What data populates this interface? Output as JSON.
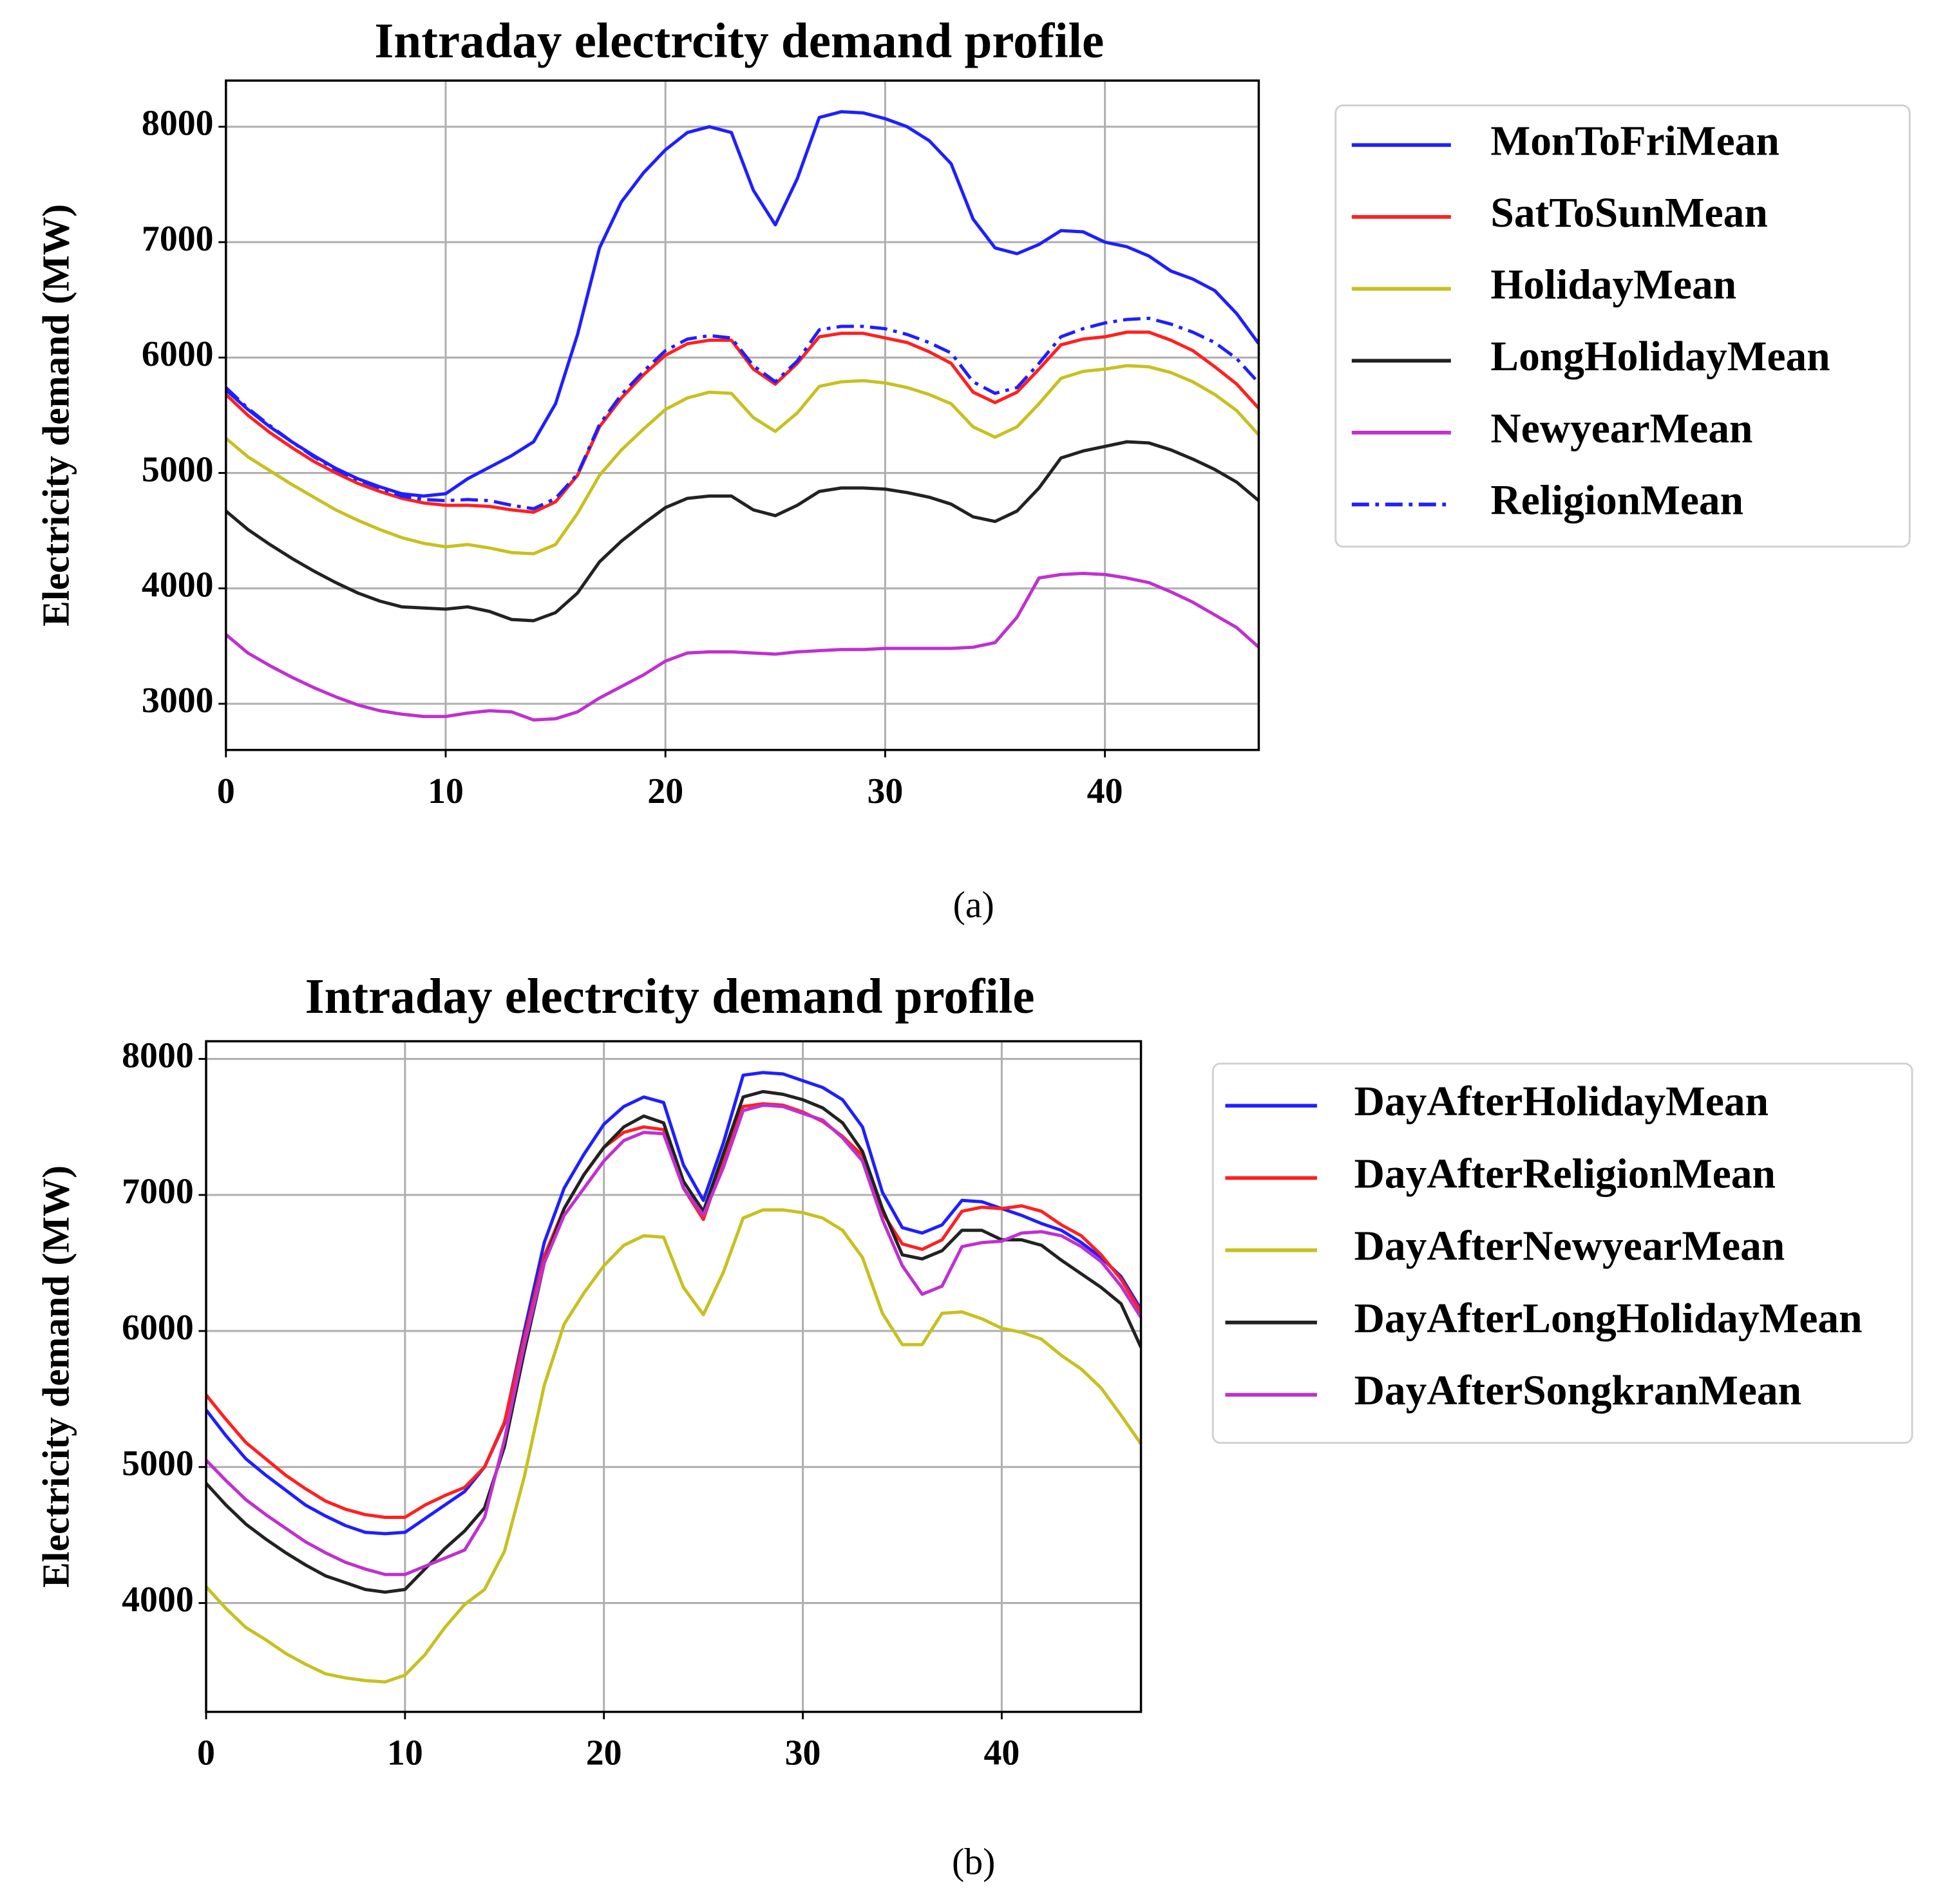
{
  "chart_data": [
    {
      "type": "line",
      "title": "Intraday electrcity demand profile",
      "ylabel": "Electricity demand (MW)",
      "caption": "(a)",
      "x": [
        0,
        1,
        2,
        3,
        4,
        5,
        6,
        7,
        8,
        9,
        10,
        11,
        12,
        13,
        14,
        15,
        16,
        17,
        18,
        19,
        20,
        21,
        22,
        23,
        24,
        25,
        26,
        27,
        28,
        29,
        30,
        31,
        32,
        33,
        34,
        35,
        36,
        37,
        38,
        39,
        40,
        41,
        42,
        43,
        44,
        45,
        46,
        47
      ],
      "xlim": [
        0,
        47
      ],
      "ylim": [
        2600,
        8400
      ],
      "xticks": [
        0,
        10,
        20,
        30,
        40
      ],
      "yticks": [
        3000,
        4000,
        5000,
        6000,
        7000,
        8000
      ],
      "grid": true,
      "legend": "outside right",
      "series": [
        {
          "name": "MonToFriMean",
          "color": "#1f1fff",
          "linestyle": "solid",
          "values": [
            5720,
            5550,
            5400,
            5270,
            5150,
            5040,
            4950,
            4880,
            4820,
            4800,
            4820,
            4950,
            5050,
            5150,
            5270,
            5600,
            6200,
            6950,
            7350,
            7600,
            7800,
            7950,
            8000,
            7950,
            7450,
            7150,
            7550,
            8080,
            8130,
            8120,
            8070,
            8000,
            7880,
            7680,
            7200,
            6950,
            6900,
            6980,
            7100,
            7090,
            7000,
            6960,
            6880,
            6750,
            6680,
            6580,
            6380,
            6120
          ]
        },
        {
          "name": "SatToSunMean",
          "color": "#ff2020",
          "linestyle": "solid",
          "values": [
            5680,
            5500,
            5350,
            5220,
            5100,
            5000,
            4910,
            4840,
            4780,
            4740,
            4720,
            4720,
            4710,
            4680,
            4660,
            4750,
            4980,
            5400,
            5650,
            5850,
            6020,
            6120,
            6150,
            6150,
            5900,
            5770,
            5950,
            6180,
            6210,
            6210,
            6170,
            6130,
            6050,
            5950,
            5700,
            5610,
            5700,
            5900,
            6110,
            6160,
            6180,
            6220,
            6220,
            6150,
            6060,
            5920,
            5770,
            5560
          ]
        },
        {
          "name": "HolidayMean",
          "color": "#c8c020",
          "linestyle": "solid",
          "values": [
            5300,
            5140,
            5020,
            4900,
            4790,
            4680,
            4590,
            4510,
            4440,
            4390,
            4360,
            4380,
            4350,
            4310,
            4300,
            4380,
            4650,
            4980,
            5200,
            5380,
            5550,
            5650,
            5700,
            5690,
            5480,
            5360,
            5520,
            5750,
            5790,
            5800,
            5780,
            5740,
            5680,
            5600,
            5400,
            5310,
            5400,
            5600,
            5820,
            5880,
            5900,
            5930,
            5920,
            5870,
            5790,
            5680,
            5540,
            5330
          ]
        },
        {
          "name": "LongHolidayMean",
          "color": "#222222",
          "linestyle": "solid",
          "values": [
            4670,
            4510,
            4380,
            4260,
            4150,
            4050,
            3960,
            3890,
            3840,
            3830,
            3820,
            3840,
            3800,
            3730,
            3720,
            3790,
            3960,
            4230,
            4410,
            4560,
            4700,
            4780,
            4800,
            4800,
            4680,
            4630,
            4720,
            4840,
            4870,
            4870,
            4860,
            4830,
            4790,
            4730,
            4620,
            4580,
            4670,
            4870,
            5130,
            5190,
            5230,
            5270,
            5260,
            5200,
            5120,
            5030,
            4920,
            4760
          ]
        },
        {
          "name": "NewyearMean",
          "color": "#c030d0",
          "linestyle": "solid",
          "values": [
            3600,
            3440,
            3330,
            3230,
            3140,
            3060,
            2990,
            2940,
            2910,
            2890,
            2890,
            2920,
            2940,
            2930,
            2860,
            2870,
            2930,
            3050,
            3150,
            3250,
            3370,
            3440,
            3450,
            3450,
            3440,
            3430,
            3450,
            3460,
            3470,
            3470,
            3480,
            3480,
            3480,
            3480,
            3490,
            3530,
            3750,
            4090,
            4120,
            4130,
            4120,
            4090,
            4050,
            3970,
            3880,
            3770,
            3660,
            3490
          ]
        },
        {
          "name": "ReligionMean",
          "color": "#1f1fff",
          "linestyle": "dashdot",
          "values": [
            5740,
            5560,
            5410,
            5270,
            5140,
            5030,
            4940,
            4870,
            4800,
            4770,
            4760,
            4770,
            4760,
            4720,
            4690,
            4780,
            4990,
            5420,
            5680,
            5880,
            6060,
            6160,
            6190,
            6170,
            5930,
            5790,
            5970,
            6240,
            6270,
            6270,
            6250,
            6200,
            6130,
            6040,
            5790,
            5690,
            5740,
            5950,
            6180,
            6250,
            6300,
            6330,
            6340,
            6290,
            6220,
            6130,
            5990,
            5780
          ]
        }
      ]
    },
    {
      "type": "line",
      "title": "Intraday electrcity demand profile",
      "ylabel": "Electricity demand (MW)",
      "caption": "(b)",
      "x": [
        0,
        1,
        2,
        3,
        4,
        5,
        6,
        7,
        8,
        9,
        10,
        11,
        12,
        13,
        14,
        15,
        16,
        17,
        18,
        19,
        20,
        21,
        22,
        23,
        24,
        25,
        26,
        27,
        28,
        29,
        30,
        31,
        32,
        33,
        34,
        35,
        36,
        37,
        38,
        39,
        40,
        41,
        42,
        43,
        44,
        45,
        46,
        47
      ],
      "xlim": [
        0,
        47
      ],
      "ylim": [
        3200,
        8130
      ],
      "xticks": [
        0,
        10,
        20,
        30,
        40
      ],
      "yticks": [
        4000,
        5000,
        6000,
        7000,
        8000
      ],
      "grid": true,
      "legend": "outside right",
      "series": [
        {
          "name": "DayAfterHolidayMean",
          "color": "#1f1fff",
          "linestyle": "solid",
          "values": [
            5420,
            5230,
            5060,
            4940,
            4830,
            4720,
            4640,
            4570,
            4520,
            4510,
            4520,
            4620,
            4720,
            4820,
            5000,
            5320,
            6000,
            6650,
            7050,
            7300,
            7520,
            7650,
            7720,
            7680,
            7220,
            6960,
            7380,
            7880,
            7900,
            7890,
            7840,
            7790,
            7700,
            7500,
            7020,
            6760,
            6720,
            6780,
            6960,
            6950,
            6900,
            6850,
            6790,
            6740,
            6650,
            6540,
            6400,
            6160
          ]
        },
        {
          "name": "DayAfterReligionMean",
          "color": "#ff2020",
          "linestyle": "solid",
          "values": [
            5530,
            5350,
            5180,
            5060,
            4940,
            4840,
            4750,
            4690,
            4650,
            4630,
            4630,
            4720,
            4790,
            4850,
            5000,
            5330,
            5950,
            6550,
            6900,
            7150,
            7350,
            7460,
            7500,
            7480,
            7050,
            6820,
            7250,
            7650,
            7670,
            7660,
            7610,
            7540,
            7430,
            7290,
            6870,
            6640,
            6600,
            6670,
            6880,
            6910,
            6900,
            6920,
            6880,
            6780,
            6700,
            6560,
            6380,
            6140
          ]
        },
        {
          "name": "DayAfterNewyearMean",
          "color": "#c8c020",
          "linestyle": "solid",
          "values": [
            4120,
            3960,
            3820,
            3730,
            3630,
            3550,
            3480,
            3450,
            3430,
            3420,
            3470,
            3620,
            3820,
            3990,
            4100,
            4380,
            4930,
            5600,
            6050,
            6280,
            6480,
            6630,
            6700,
            6690,
            6320,
            6120,
            6430,
            6830,
            6890,
            6890,
            6870,
            6830,
            6740,
            6540,
            6130,
            5900,
            5900,
            6130,
            6140,
            6090,
            6020,
            5990,
            5940,
            5820,
            5720,
            5580,
            5380,
            5170
          ]
        },
        {
          "name": "DayAfterLongHolidayMean",
          "color": "#222222",
          "linestyle": "solid",
          "values": [
            4880,
            4720,
            4580,
            4470,
            4370,
            4280,
            4200,
            4150,
            4100,
            4080,
            4100,
            4250,
            4400,
            4530,
            4700,
            5150,
            5850,
            6500,
            6900,
            7150,
            7350,
            7500,
            7580,
            7530,
            7100,
            6880,
            7300,
            7720,
            7760,
            7740,
            7700,
            7640,
            7530,
            7320,
            6900,
            6560,
            6530,
            6590,
            6740,
            6740,
            6670,
            6670,
            6630,
            6520,
            6420,
            6320,
            6200,
            5880
          ]
        },
        {
          "name": "DayAfterSongkranMean",
          "color": "#c030d0",
          "linestyle": "solid",
          "values": [
            5050,
            4900,
            4760,
            4650,
            4550,
            4450,
            4370,
            4300,
            4250,
            4210,
            4210,
            4270,
            4330,
            4390,
            4630,
            5200,
            5900,
            6500,
            6850,
            7050,
            7250,
            7400,
            7460,
            7450,
            7050,
            6850,
            7200,
            7620,
            7660,
            7650,
            7600,
            7550,
            7420,
            7250,
            6820,
            6480,
            6270,
            6330,
            6620,
            6650,
            6660,
            6720,
            6730,
            6700,
            6620,
            6510,
            6330,
            6100
          ]
        }
      ]
    }
  ]
}
